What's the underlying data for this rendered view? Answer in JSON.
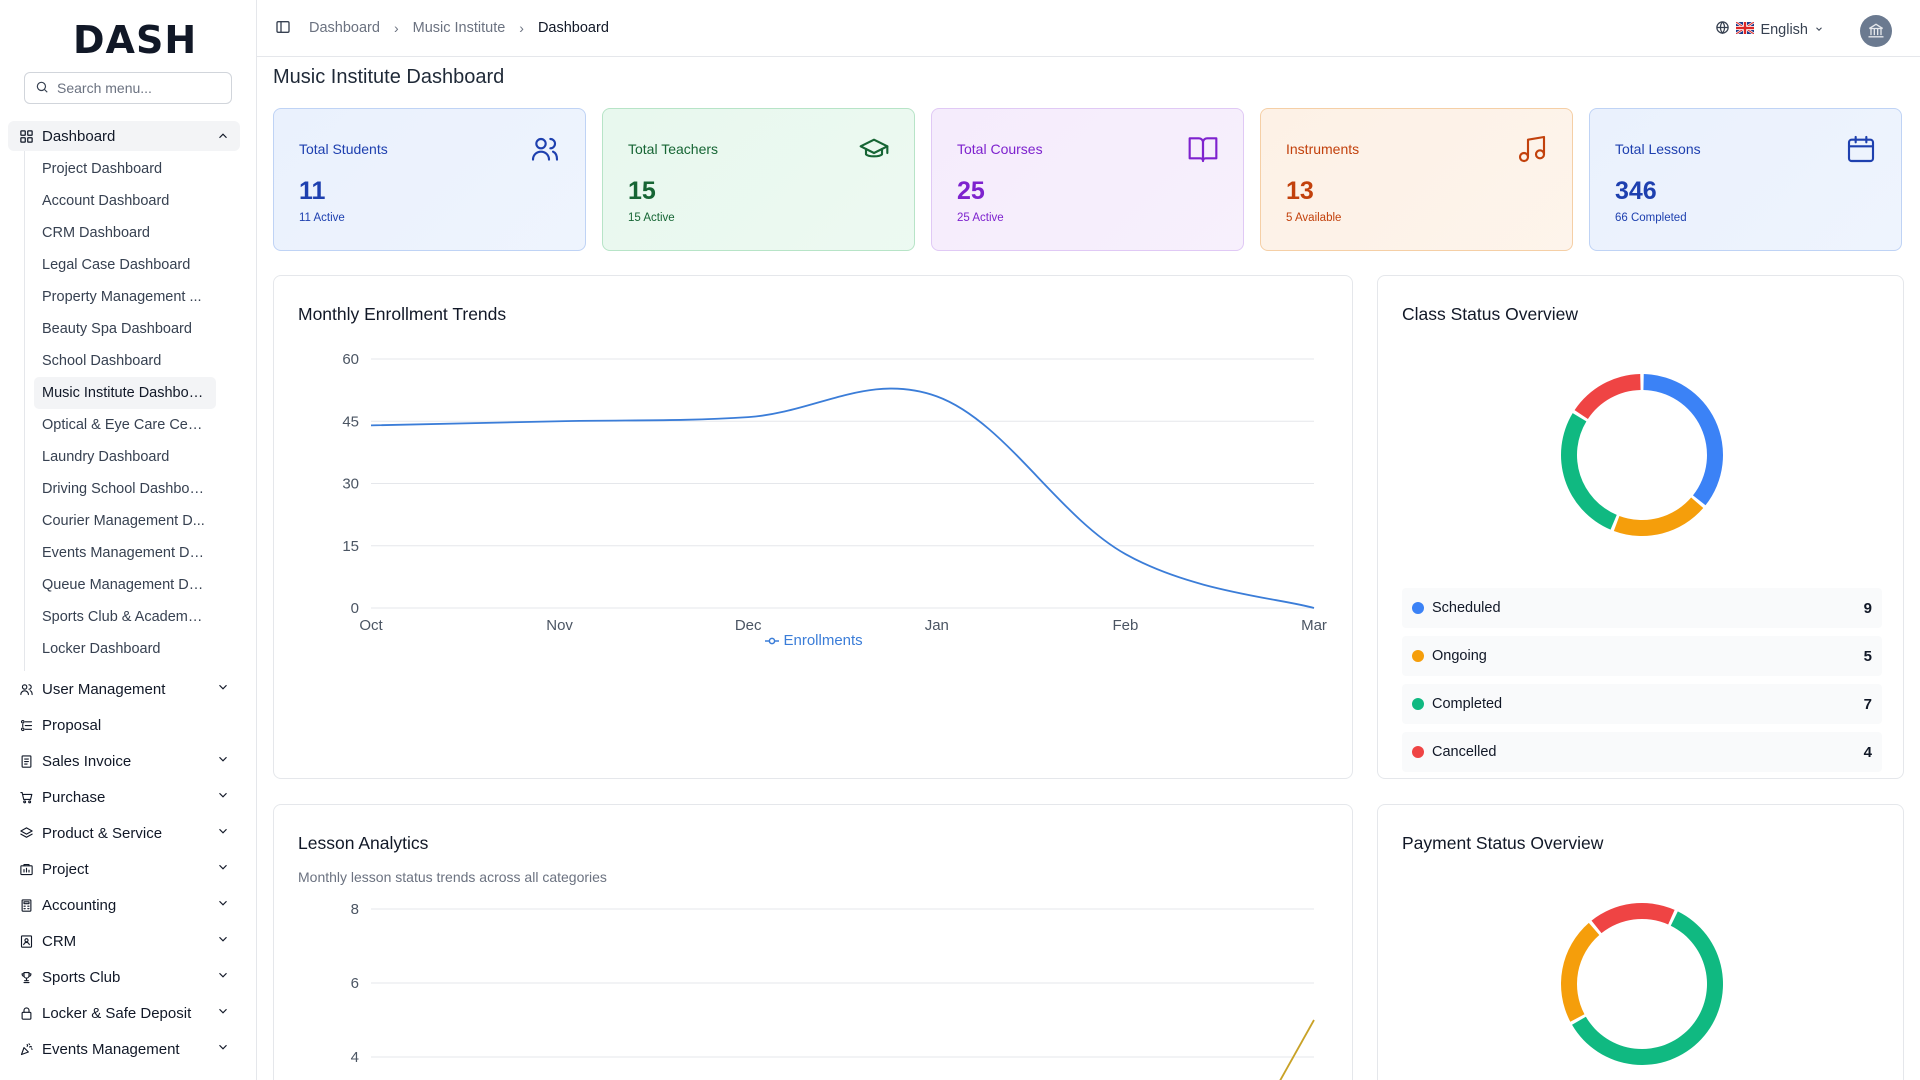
{
  "brand": {
    "logo_text": "DASH"
  },
  "search": {
    "placeholder": "Search menu..."
  },
  "sidebar": {
    "dashboard_label": "Dashboard",
    "sub_items": [
      "Project Dashboard",
      "Account Dashboard",
      "CRM Dashboard",
      "Legal Case Dashboard",
      "Property Management ...",
      "Beauty Spa Dashboard",
      "School Dashboard",
      "Music Institute Dashboard",
      "Optical & Eye Care Cent...",
      "Laundry Dashboard",
      "Driving School Dashboard",
      "Courier Management D...",
      "Events Management Da...",
      "Queue Management Da...",
      "Sports Club & Academy ...",
      "Locker Dashboard"
    ],
    "active_sub_index": 7,
    "groups": [
      {
        "label": "User Management",
        "icon": "users-icon",
        "expandable": true
      },
      {
        "label": "Proposal",
        "icon": "proposal-icon",
        "expandable": false
      },
      {
        "label": "Sales Invoice",
        "icon": "invoice-icon",
        "expandable": true
      },
      {
        "label": "Purchase",
        "icon": "cart-icon",
        "expandable": true
      },
      {
        "label": "Product & Service",
        "icon": "layers-icon",
        "expandable": true
      },
      {
        "label": "Project",
        "icon": "project-icon",
        "expandable": true
      },
      {
        "label": "Accounting",
        "icon": "calculator-icon",
        "expandable": true
      },
      {
        "label": "CRM",
        "icon": "contact-icon",
        "expandable": true
      },
      {
        "label": "Sports Club",
        "icon": "trophy-icon",
        "expandable": true
      },
      {
        "label": "Locker & Safe Deposit",
        "icon": "lock-icon",
        "expandable": true
      },
      {
        "label": "Events Management",
        "icon": "party-icon",
        "expandable": true
      }
    ]
  },
  "header": {
    "breadcrumb": [
      "Dashboard",
      "Music Institute",
      "Dashboard"
    ],
    "language": "English"
  },
  "page": {
    "title": "Music Institute Dashboard"
  },
  "stats": [
    {
      "label": "Total Students",
      "value": "11",
      "sub": "11 Active",
      "icon": "users-icon",
      "color": "#1e40af",
      "bg": "#eaf1fd",
      "border": "#bfd3f5"
    },
    {
      "label": "Total Teachers",
      "value": "15",
      "sub": "15 Active",
      "icon": "graduation-cap-icon",
      "color": "#166534",
      "bg": "#e8f8ee",
      "border": "#b7e4c7"
    },
    {
      "label": "Total Courses",
      "value": "25",
      "sub": "25 Active",
      "icon": "book-icon",
      "color": "#7e22ce",
      "bg": "#f5ecfc",
      "border": "#e0c9f5"
    },
    {
      "label": "Instruments",
      "value": "13",
      "sub": "5 Available",
      "icon": "music-note-icon",
      "color": "#c2410c",
      "bg": "#fdf1e6",
      "border": "#f5cfa6"
    },
    {
      "label": "Total Lessons",
      "value": "346",
      "sub": "66 Completed",
      "icon": "calendar-icon",
      "color": "#1e40af",
      "bg": "#eaf1fd",
      "border": "#bfd3f5"
    }
  ],
  "enrollment": {
    "title": "Monthly Enrollment Trends",
    "legend": "Enrollments"
  },
  "class_status": {
    "title": "Class Status Overview",
    "items": [
      {
        "name": "Scheduled",
        "value": "9",
        "color": "#3b82f6"
      },
      {
        "name": "Ongoing",
        "value": "5",
        "color": "#f59e0b"
      },
      {
        "name": "Completed",
        "value": "7",
        "color": "#10b981"
      },
      {
        "name": "Cancelled",
        "value": "4",
        "color": "#ef4444"
      }
    ]
  },
  "lesson_analytics": {
    "title": "Lesson Analytics",
    "subtitle": "Monthly lesson status trends across all categories"
  },
  "payment_status": {
    "title": "Payment Status Overview"
  },
  "chart_data": [
    {
      "type": "line",
      "title": "Monthly Enrollment Trends",
      "categories": [
        "Oct",
        "Nov",
        "Dec",
        "Jan",
        "Feb",
        "Mar"
      ],
      "series": [
        {
          "name": "Enrollments",
          "values": [
            44,
            45,
            46,
            51,
            13,
            0
          ],
          "color": "#3b7dd8"
        }
      ],
      "ylim": [
        0,
        60
      ],
      "yticks": [
        0,
        15,
        30,
        45,
        60
      ],
      "grid": true,
      "legend": "bottom"
    },
    {
      "type": "pie",
      "title": "Class Status Overview",
      "categories": [
        "Scheduled",
        "Ongoing",
        "Completed",
        "Cancelled"
      ],
      "values": [
        9,
        5,
        7,
        4
      ],
      "colors": [
        "#3b82f6",
        "#f59e0b",
        "#10b981",
        "#ef4444"
      ],
      "donut": true
    },
    {
      "type": "line",
      "title": "Lesson Analytics",
      "series": [
        {
          "values": [
            0,
            0,
            0,
            0,
            0,
            5
          ],
          "color": "#c9a227"
        }
      ],
      "yticks": [
        4,
        6,
        8
      ],
      "grid": true
    },
    {
      "type": "pie",
      "title": "Payment Status Overview",
      "values": [
        60,
        22,
        18
      ],
      "colors": [
        "#10b981",
        "#f59e0b",
        "#ef4444"
      ],
      "donut": true
    }
  ]
}
